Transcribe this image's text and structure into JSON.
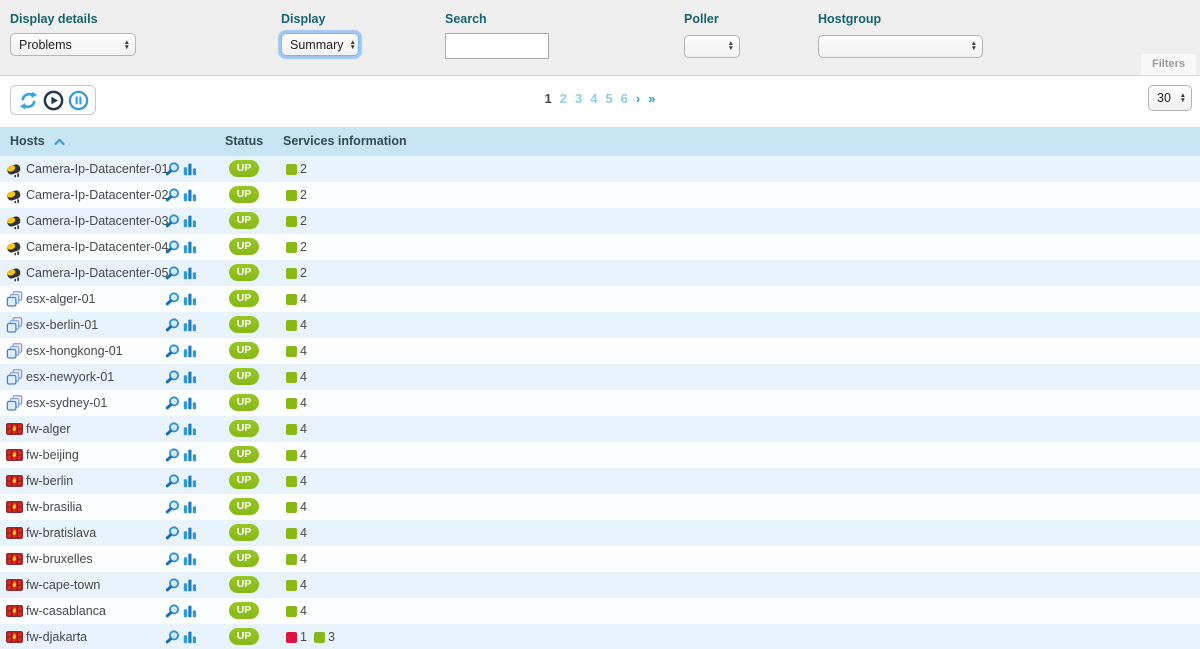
{
  "filter_bar": {
    "display_details": {
      "label": "Display details",
      "value": "Problems"
    },
    "display": {
      "label": "Display",
      "value": "Summary"
    },
    "search": {
      "label": "Search",
      "value": ""
    },
    "poller": {
      "label": "Poller",
      "value": ""
    },
    "hostgroup": {
      "label": "Hostgroup",
      "value": ""
    },
    "filters_button": "Filters"
  },
  "toolbar": {
    "icons": [
      "refresh-icon",
      "play-icon",
      "pause-icon"
    ],
    "pagination": {
      "pages": [
        {
          "label": "1",
          "current": true
        },
        {
          "label": "2"
        },
        {
          "label": "3"
        },
        {
          "label": "4"
        },
        {
          "label": "5"
        },
        {
          "label": "6"
        }
      ],
      "next": "›",
      "last": "»"
    },
    "page_size": "30"
  },
  "table": {
    "headers": {
      "hosts": "Hosts",
      "status": "Status",
      "services": "Services information"
    },
    "sort": {
      "column": "Hosts",
      "direction": "asc"
    },
    "rows": [
      {
        "name": "Camera-Ip-Datacenter-01",
        "type": "camera",
        "status": "UP",
        "services": [
          {
            "state": "ok",
            "count": "2"
          }
        ]
      },
      {
        "name": "Camera-Ip-Datacenter-02",
        "type": "camera",
        "status": "UP",
        "services": [
          {
            "state": "ok",
            "count": "2"
          }
        ]
      },
      {
        "name": "Camera-Ip-Datacenter-03",
        "type": "camera",
        "status": "UP",
        "services": [
          {
            "state": "ok",
            "count": "2"
          }
        ]
      },
      {
        "name": "Camera-Ip-Datacenter-04",
        "type": "camera",
        "status": "UP",
        "services": [
          {
            "state": "ok",
            "count": "2"
          }
        ]
      },
      {
        "name": "Camera-Ip-Datacenter-05",
        "type": "camera",
        "status": "UP",
        "services": [
          {
            "state": "ok",
            "count": "2"
          }
        ]
      },
      {
        "name": "esx-alger-01",
        "type": "esx",
        "status": "UP",
        "services": [
          {
            "state": "ok",
            "count": "4"
          }
        ]
      },
      {
        "name": "esx-berlin-01",
        "type": "esx",
        "status": "UP",
        "services": [
          {
            "state": "ok",
            "count": "4"
          }
        ]
      },
      {
        "name": "esx-hongkong-01",
        "type": "esx",
        "status": "UP",
        "services": [
          {
            "state": "ok",
            "count": "4"
          }
        ]
      },
      {
        "name": "esx-newyork-01",
        "type": "esx",
        "status": "UP",
        "services": [
          {
            "state": "ok",
            "count": "4"
          }
        ]
      },
      {
        "name": "esx-sydney-01",
        "type": "esx",
        "status": "UP",
        "services": [
          {
            "state": "ok",
            "count": "4"
          }
        ]
      },
      {
        "name": "fw-alger",
        "type": "fw",
        "status": "UP",
        "services": [
          {
            "state": "ok",
            "count": "4"
          }
        ]
      },
      {
        "name": "fw-beijing",
        "type": "fw",
        "status": "UP",
        "services": [
          {
            "state": "ok",
            "count": "4"
          }
        ]
      },
      {
        "name": "fw-berlin",
        "type": "fw",
        "status": "UP",
        "services": [
          {
            "state": "ok",
            "count": "4"
          }
        ]
      },
      {
        "name": "fw-brasilia",
        "type": "fw",
        "status": "UP",
        "services": [
          {
            "state": "ok",
            "count": "4"
          }
        ]
      },
      {
        "name": "fw-bratislava",
        "type": "fw",
        "status": "UP",
        "services": [
          {
            "state": "ok",
            "count": "4"
          }
        ]
      },
      {
        "name": "fw-bruxelles",
        "type": "fw",
        "status": "UP",
        "services": [
          {
            "state": "ok",
            "count": "4"
          }
        ]
      },
      {
        "name": "fw-cape-town",
        "type": "fw",
        "status": "UP",
        "services": [
          {
            "state": "ok",
            "count": "4"
          }
        ]
      },
      {
        "name": "fw-casablanca",
        "type": "fw",
        "status": "UP",
        "services": [
          {
            "state": "ok",
            "count": "4"
          }
        ]
      },
      {
        "name": "fw-djakarta",
        "type": "fw",
        "status": "UP",
        "services": [
          {
            "state": "critical",
            "count": "1"
          },
          {
            "state": "ok",
            "count": "3"
          }
        ]
      }
    ]
  },
  "colors": {
    "teal": "#17646e",
    "head_bg": "#c7e5f3",
    "head_text": "#36495a",
    "ok": "#88b917",
    "ok_light": "#97c723",
    "critical": "#e0153f",
    "link_blue": "#2d9fd6",
    "pg_blue": "#8ecdec",
    "row_alt": "#e8f3fb",
    "row_plain": "#fbfdff"
  }
}
